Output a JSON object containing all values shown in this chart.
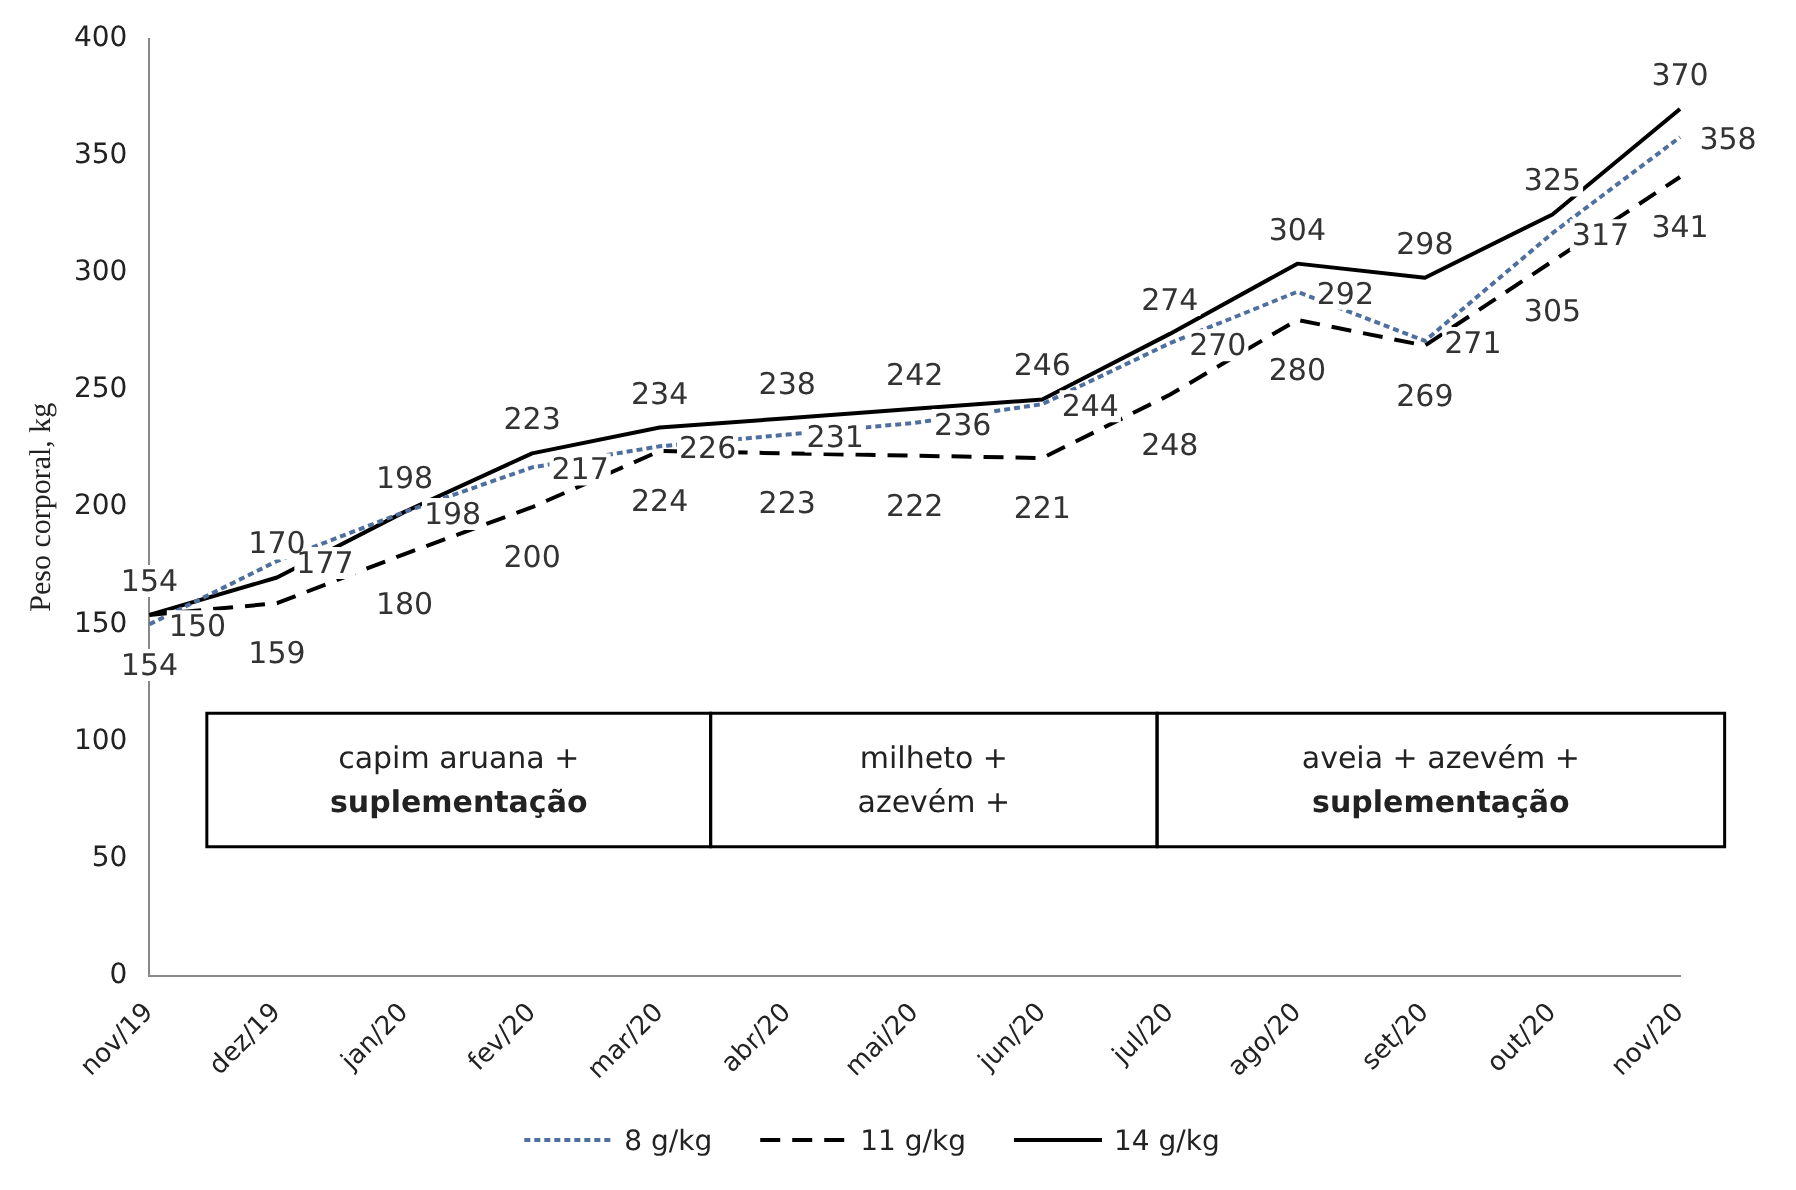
{
  "chart_data": {
    "type": "line",
    "ylabel": "Peso corporal, kg",
    "categories": [
      "nov/19",
      "dez/19",
      "jan/20",
      "fev/20",
      "mar/20",
      "abr/20",
      "mai/20",
      "jun/20",
      "jul/20",
      "ago/20",
      "set/20",
      "out/20",
      "nov/20"
    ],
    "series": [
      {
        "name": "8 g/kg",
        "color": "#4f6f9f",
        "line_style": "dotted",
        "values": [
          150,
          177,
          198,
          217,
          226,
          231,
          236,
          244,
          270,
          292,
          271,
          317,
          358
        ]
      },
      {
        "name": "11 g/kg",
        "color": "#000000",
        "line_style": "dashed",
        "values": [
          154,
          159,
          180,
          200,
          224,
          223,
          222,
          221,
          248,
          280,
          269,
          305,
          341
        ]
      },
      {
        "name": "14 g/kg",
        "color": "#000000",
        "line_style": "solid",
        "values": [
          154,
          170,
          198,
          223,
          234,
          238,
          242,
          246,
          274,
          304,
          298,
          325,
          370
        ]
      }
    ],
    "annotations": [
      "capim aruana +\nsuplementação",
      "milheto +\nazevém +",
      "aveia + azevém +\nsuplementação"
    ],
    "ylim": [
      0,
      400
    ],
    "yticks": [
      0,
      50,
      100,
      150,
      200,
      250,
      300,
      350,
      400
    ],
    "grid": false,
    "legend": "bottom",
    "marker": "none",
    "data_labels": true
  }
}
